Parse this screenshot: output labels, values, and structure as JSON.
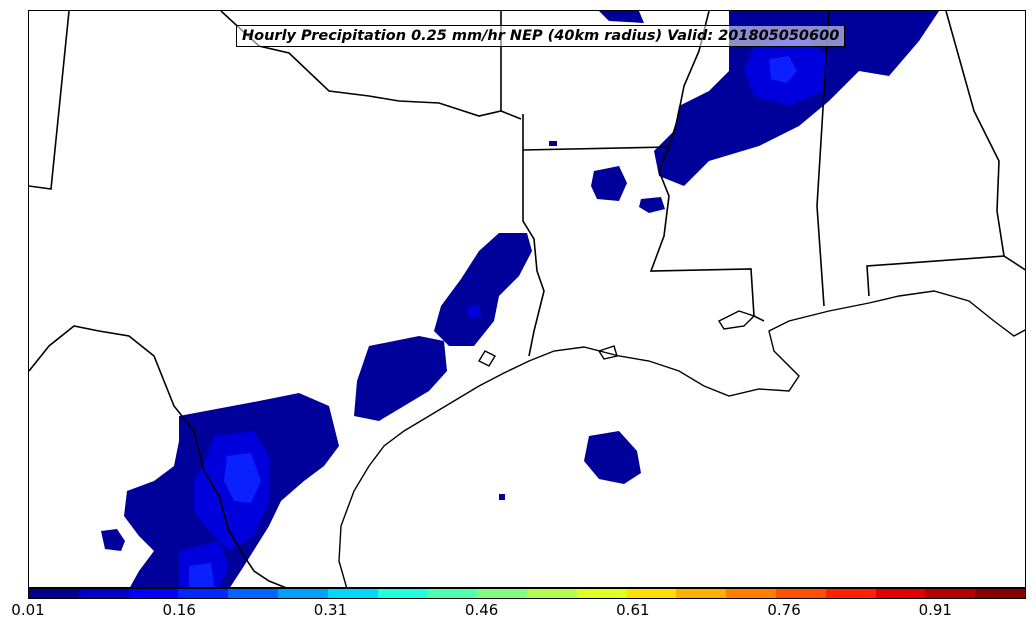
{
  "map": {
    "title": "Hourly Precipitation 0.25 mm/hr NEP (40km radius) Valid: 201805050600",
    "field": "probability",
    "colors": {
      "level_1": "#00009a",
      "level_2": "#0000dc",
      "level_3": "#0a20ff",
      "land_background": "#ffffff",
      "boundary_lines": "#000000"
    }
  },
  "colorbar": {
    "min": 0.01,
    "max": 1.0,
    "tick_labels": [
      "0.01",
      "0.16",
      "0.31",
      "0.46",
      "0.61",
      "0.76",
      "0.91"
    ],
    "colors": [
      "#00008c",
      "#0000c8",
      "#0000ff",
      "#0028ff",
      "#0064ff",
      "#00a0ff",
      "#00d8ff",
      "#20ffe0",
      "#50ffb0",
      "#80ff80",
      "#b0ff50",
      "#e0ff20",
      "#ffe000",
      "#ffb000",
      "#ff8000",
      "#ff5000",
      "#ff2000",
      "#e00000",
      "#b00000",
      "#880000"
    ]
  }
}
